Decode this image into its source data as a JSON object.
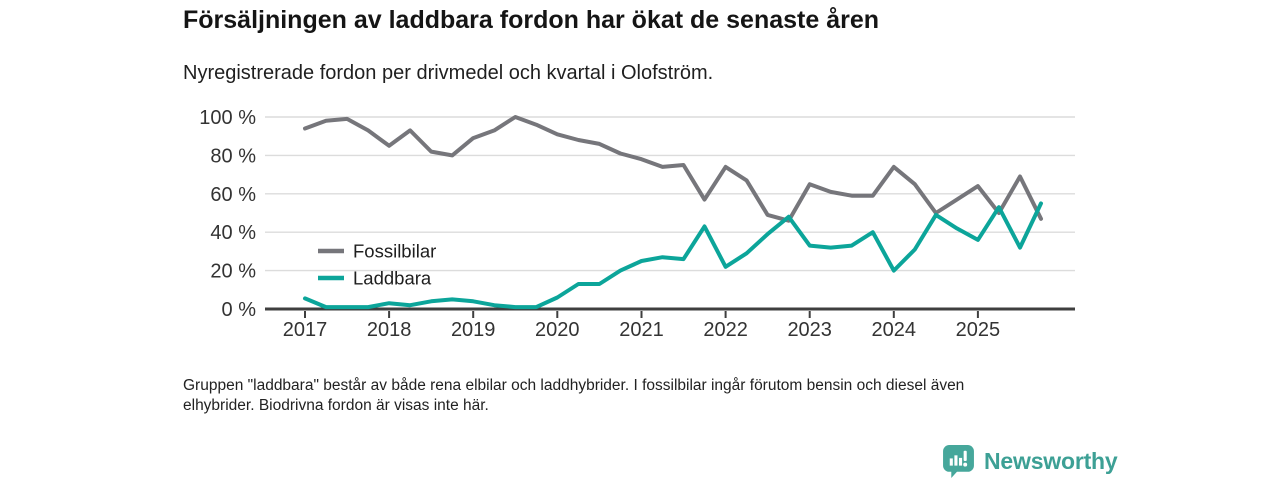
{
  "header": {
    "title": "Försäljningen av laddbara fordon har ökat de senaste åren",
    "subtitle": "Nyregistrerade fordon per drivmedel och kvartal i Olofström."
  },
  "footnote": {
    "line1": "Gruppen \"laddbara\" består av både rena elbilar och laddhybrider. I fossilbilar ingår förutom bensin och diesel även",
    "line2": "elhybrider. Biodrivna fordon är visas inte här."
  },
  "logo": {
    "text": "Newsworthy",
    "color": "#3da095"
  },
  "colors": {
    "fossil_line": "#76767b",
    "laddbara_line": "#0ca59a",
    "gridline": "#dcdcdc",
    "axis": "#3f3f3f"
  },
  "chart_data": {
    "type": "line",
    "title": "Försäljningen av laddbara fordon har ökat de senaste åren",
    "subtitle": "Nyregistrerade fordon per drivmedel och kvartal i Olofström.",
    "xlabel": "",
    "ylabel": "",
    "unit": "%",
    "ytick_suffix": " %",
    "ylim": [
      0,
      100
    ],
    "yticks": [
      0,
      20,
      40,
      60,
      80,
      100
    ],
    "grid": true,
    "legend_position": "inside-left",
    "x_ticks_every": 4,
    "x_tick_labels": [
      "2017",
      "2018",
      "2019",
      "2020",
      "2021",
      "2022",
      "2023",
      "2024",
      "2025"
    ],
    "x_quarters": "2017Q1 through 2025Q4, quarterly",
    "series": [
      {
        "name": "Fossilbilar",
        "color": "#76767b",
        "values": [
          94,
          98,
          99,
          93,
          85,
          93,
          82,
          80,
          89,
          93,
          100,
          96,
          91,
          88,
          86,
          81,
          78,
          74,
          75,
          57,
          74,
          67,
          49,
          46,
          65,
          61,
          59,
          59,
          74,
          65,
          50,
          57,
          64,
          50,
          69,
          47
        ]
      },
      {
        "name": "Laddbara",
        "color": "#0ca59a",
        "values": [
          5.5,
          1,
          1,
          1,
          3,
          2,
          4,
          5,
          4,
          2,
          1,
          1,
          6,
          13,
          13,
          20,
          25,
          27,
          26,
          43,
          22,
          29,
          39,
          48,
          33,
          32,
          33,
          40,
          20,
          31,
          49,
          42,
          36,
          53,
          32,
          55
        ]
      }
    ]
  }
}
